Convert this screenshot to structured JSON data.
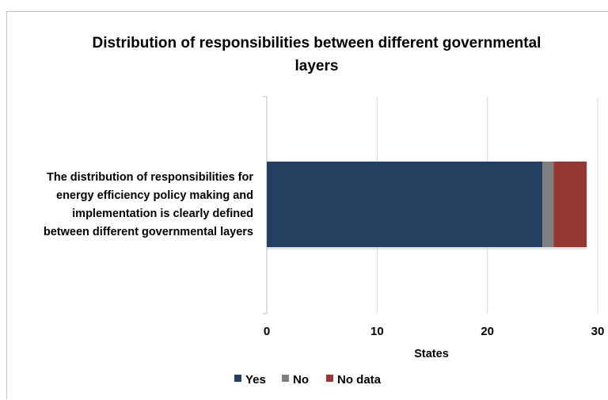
{
  "chart_data": {
    "type": "bar",
    "orientation": "horizontal",
    "stacked": true,
    "title_lines": [
      "Distribution of responsibilities between different governmental",
      "layers"
    ],
    "categories": [
      "The distribution of responsibilities for energy efficiency policy making and implementation is clearly defined between different governmental layers"
    ],
    "category_lines": [
      "The distribution of responsibilities for",
      "energy efficiency policy making and",
      "implementation is clearly defined",
      "between different governmental layers"
    ],
    "series": [
      {
        "name": "Yes",
        "values": [
          25
        ],
        "color": "#243f60"
      },
      {
        "name": "No",
        "values": [
          1
        ],
        "color": "#7f7f7f"
      },
      {
        "name": "No data",
        "values": [
          3
        ],
        "color": "#953735"
      }
    ],
    "xlabel": "States",
    "xlim": [
      0,
      30
    ],
    "x_ticks": [
      0,
      10,
      20,
      30
    ],
    "x_tick_labels": [
      "0",
      "10",
      "20",
      "30"
    ],
    "grid": "vertical",
    "legend_position": "bottom"
  }
}
